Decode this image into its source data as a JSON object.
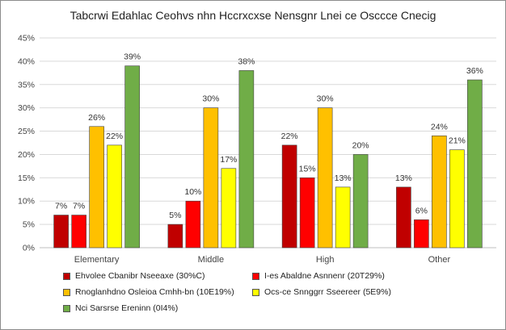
{
  "chart_data": {
    "type": "bar",
    "title": "Tabcrwi Edahlac Ceohvs nhn Hccrxcxse Nensgnr Lnei ce Osccce Cnecig",
    "categories": [
      "Elementary",
      "Middle",
      "High",
      "Other"
    ],
    "series": [
      {
        "name": "Ehvolee Cbanibr Nseeaxe (30%C)",
        "color": "#c00000",
        "values": [
          7,
          5,
          22,
          13
        ],
        "labels": [
          "7%",
          "5%",
          "22%",
          "13%"
        ]
      },
      {
        "name": "I-es Abaldne Asnnenr (20T29%)",
        "color": "#ff0000",
        "values": [
          7,
          10,
          15,
          6
        ],
        "labels": [
          "7%",
          "10%",
          "15%",
          "6%"
        ]
      },
      {
        "name": "Rnoglanhdno Osleioa Cmhh-bn (10E19%)",
        "color": "#ffc000",
        "values": [
          26,
          30,
          30,
          24
        ],
        "labels": [
          "26%",
          "30%",
          "30%",
          "24%"
        ]
      },
      {
        "name": "Ocs-ce Snnggrr Sseereer (5E9%)",
        "color": "#ffff00",
        "values": [
          22,
          17,
          13,
          21
        ],
        "labels": [
          "22%",
          "17%",
          "13%",
          "21%"
        ]
      },
      {
        "name": "Nci Sarsrse Ereninn (0I4%)",
        "color": "#70ad47",
        "values": [
          39,
          38,
          20,
          36
        ],
        "labels": [
          "39%",
          "38%",
          "20%",
          "36%"
        ]
      }
    ],
    "ylim": [
      0,
      45
    ],
    "yticks": [
      "0%",
      "5%",
      "10%",
      "15%",
      "20%",
      "25%",
      "30%",
      "35%",
      "40%",
      "45%"
    ],
    "grid": true,
    "legend_position": "bottom"
  }
}
